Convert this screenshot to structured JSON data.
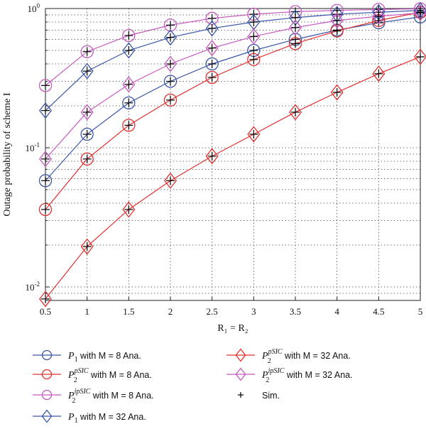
{
  "chart_data": {
    "type": "line",
    "xlabel": "R₁ = R₂",
    "ylabel": "Outage probability of scheme I",
    "xlim": [
      0.5,
      5
    ],
    "ylim": [
      0.008,
      1
    ],
    "yscale": "log",
    "grid": true,
    "legend_position": "bottom",
    "x": [
      0.5,
      1,
      1.5,
      2,
      2.5,
      3,
      3.5,
      4,
      4.5,
      5
    ],
    "x_ticks": [
      "0.5",
      "1",
      "1.5",
      "2",
      "2.5",
      "3",
      "3.5",
      "4",
      "4.5",
      "5"
    ],
    "y_ticks": [
      {
        "value": 0.01,
        "base": "10",
        "exp": "-2"
      },
      {
        "value": 0.1,
        "base": "10",
        "exp": "-1"
      },
      {
        "value": 1,
        "base": "10",
        "exp": "0"
      }
    ],
    "series": [
      {
        "name": "P₁ with M = 8 Ana.",
        "color": "#3a56a8",
        "marker": "circle",
        "values": [
          0.058,
          0.125,
          0.21,
          0.3,
          0.4,
          0.5,
          0.6,
          0.7,
          0.79,
          0.87
        ]
      },
      {
        "name": "P₂ᵖˢᴵᶜ with M = 8 Ana.",
        "color": "#e03030",
        "marker": "circle",
        "values": [
          0.036,
          0.083,
          0.145,
          0.22,
          0.32,
          0.43,
          0.56,
          0.69,
          0.82,
          0.94
        ]
      },
      {
        "name": "P₂ⁱᵖˢᴵᶜ with M = 8 Ana.",
        "color": "#c658c0",
        "marker": "circle",
        "values": [
          0.28,
          0.49,
          0.64,
          0.76,
          0.85,
          0.91,
          0.95,
          0.97,
          0.985,
          0.995
        ]
      },
      {
        "name": "P₁ with M = 32 Ana.",
        "color": "#3a56a8",
        "marker": "diamond",
        "values": [
          0.185,
          0.355,
          0.5,
          0.62,
          0.72,
          0.8,
          0.86,
          0.91,
          0.94,
          0.97
        ]
      },
      {
        "name": "P₂ᵖˢᴵᶜ with M = 32 Ana.",
        "color": "#e03030",
        "marker": "diamond",
        "values": [
          0.0082,
          0.0195,
          0.036,
          0.058,
          0.087,
          0.125,
          0.18,
          0.25,
          0.34,
          0.45
        ]
      },
      {
        "name": "P₂ⁱᵖˢᴵᶜ with M = 32 Ana.",
        "color": "#c658c0",
        "marker": "diamond",
        "values": [
          0.083,
          0.18,
          0.285,
          0.4,
          0.52,
          0.63,
          0.73,
          0.82,
          0.88,
          0.93
        ]
      }
    ],
    "simulation": {
      "name": "Sim.",
      "color": "#000000",
      "marker": "plus"
    },
    "legend": [
      {
        "prefix": "P",
        "sub": "1",
        "sup": "",
        "suffix": " with M = 8 Ana.",
        "color": "#3a56a8",
        "marker": "circle"
      },
      {
        "prefix": "P",
        "sub": "2",
        "sup": "pSIC",
        "suffix": " with M = 8 Ana.",
        "color": "#e03030",
        "marker": "circle"
      },
      {
        "prefix": "P",
        "sub": "2",
        "sup": "ipSIC",
        "suffix": " with M = 8 Ana.",
        "color": "#c658c0",
        "marker": "circle"
      },
      {
        "prefix": "P",
        "sub": "1",
        "sup": "",
        "suffix": " with M = 32 Ana.",
        "color": "#3a56a8",
        "marker": "diamond"
      },
      {
        "prefix": "P",
        "sub": "2",
        "sup": "pSIC",
        "suffix": " with M = 32 Ana.",
        "color": "#e03030",
        "marker": "diamond"
      },
      {
        "prefix": "P",
        "sub": "2",
        "sup": "ipSIC",
        "suffix": " with M = 32 Ana.",
        "color": "#c658c0",
        "marker": "diamond"
      },
      {
        "prefix": "",
        "sub": "",
        "sup": "",
        "suffix": "Sim.",
        "color": "#000000",
        "marker": "plus"
      }
    ]
  }
}
